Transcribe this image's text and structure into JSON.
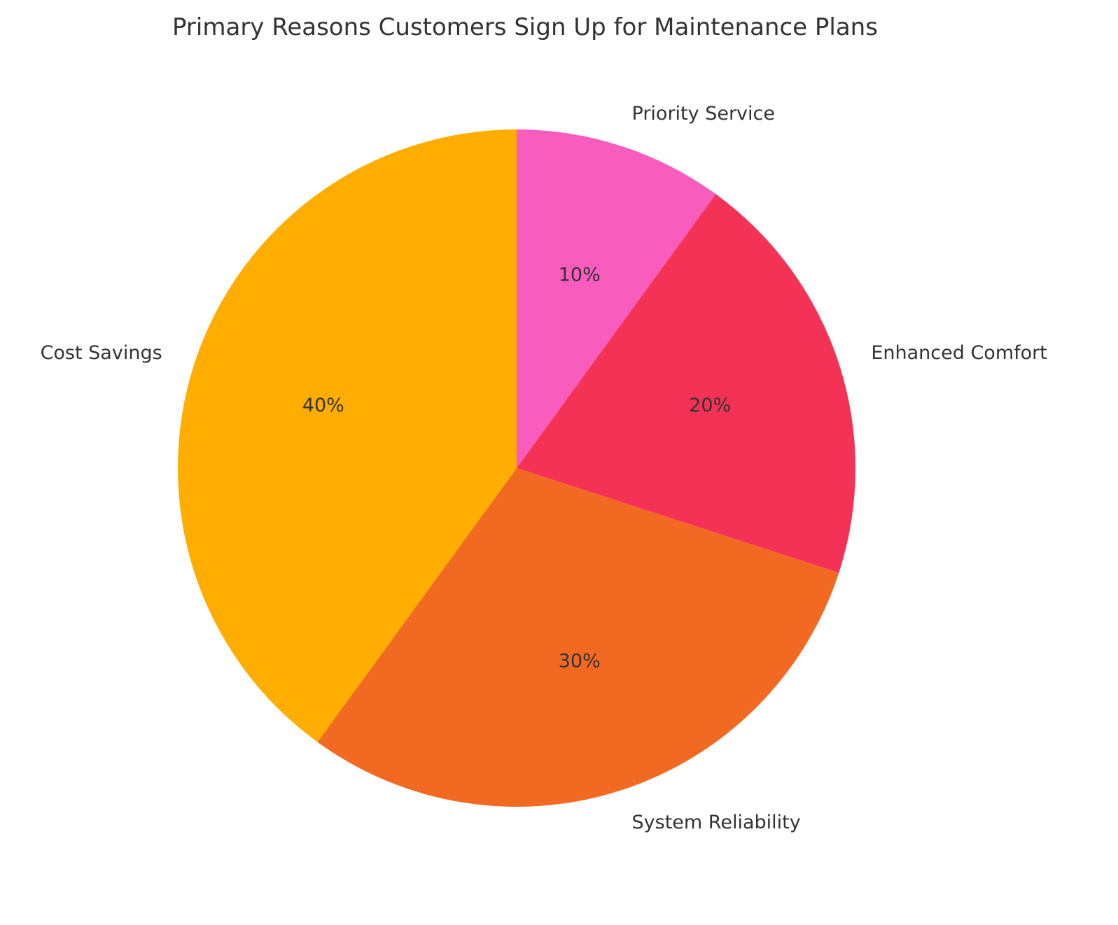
{
  "chart_data": {
    "type": "pie",
    "title": "Primary Reasons Customers Sign Up for Maintenance Plans",
    "categories": [
      "Priority Service",
      "Enhanced Comfort",
      "System Reliability",
      "Cost Savings"
    ],
    "values": [
      10,
      20,
      30,
      40
    ],
    "value_labels": [
      "10%",
      "20%",
      "30%",
      "40%"
    ],
    "colors": [
      "#f85cbd",
      "#f43256",
      "#f26922",
      "#ffad00"
    ],
    "start_angle_deg": 90,
    "direction": "clockwise",
    "legend": "none"
  }
}
